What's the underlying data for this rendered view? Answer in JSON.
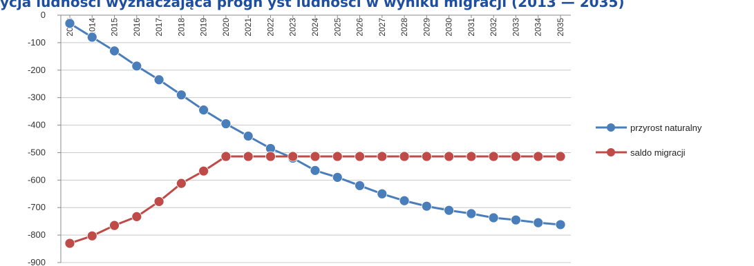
{
  "chart_data": {
    "type": "line",
    "title": "ycja ludności wyznaczająca progn          yst ludności w wyniku migracji (2013 — 2035)",
    "xlabel": "",
    "ylabel": "",
    "x": [
      "2013",
      "2014",
      "2015",
      "2016",
      "2017",
      "2018",
      "2019",
      "2020",
      "2021",
      "2022",
      "2023",
      "2024",
      "2025",
      "2026",
      "2027",
      "2028",
      "2029",
      "2030",
      "2031",
      "2032",
      "2033",
      "2034",
      "2035"
    ],
    "y_ticks": [
      "0",
      "-100",
      "-200",
      "-300",
      "-400",
      "-500",
      "-600",
      "-700",
      "-800",
      "-900"
    ],
    "ylim": [
      -900,
      0
    ],
    "grid": true,
    "legend": "right",
    "series": [
      {
        "name": "przyrost naturalny",
        "color": "#4a7ebb",
        "values": [
          -30,
          -80,
          -130,
          -185,
          -235,
          -290,
          -345,
          -395,
          -440,
          -485,
          -520,
          -565,
          -590,
          -620,
          -650,
          -675,
          -695,
          -710,
          -722,
          -737,
          -745,
          -755,
          -762
        ]
      },
      {
        "name": "saldo migracji",
        "color": "#be4b48",
        "values": [
          -830,
          -803,
          -765,
          -733,
          -678,
          -612,
          -567,
          -514,
          -514,
          -514,
          -514,
          -514,
          -514,
          -514,
          -514,
          -514,
          -514,
          -514,
          -514,
          -514,
          -514,
          -514,
          -514
        ]
      }
    ]
  }
}
